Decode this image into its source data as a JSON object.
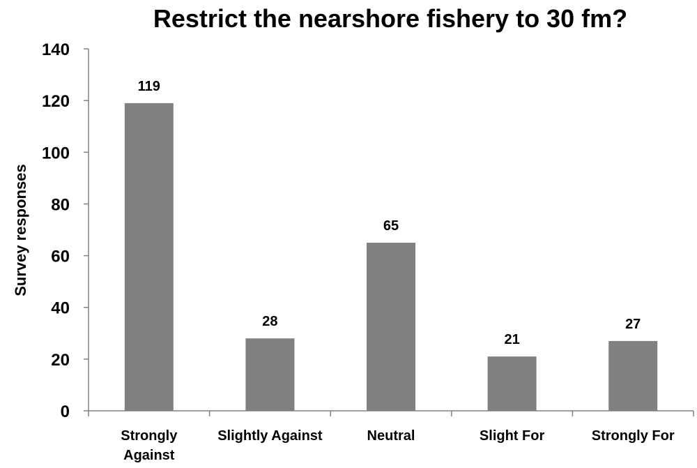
{
  "chart_data": {
    "type": "bar",
    "title": "Restrict the nearshore fishery to 30 fm?",
    "xlabel": "",
    "ylabel": "Survey responses",
    "categories": [
      [
        "Strongly",
        "Against"
      ],
      [
        "Slightly Against"
      ],
      [
        "Neutral"
      ],
      [
        "Slight For"
      ],
      [
        "Strongly For"
      ]
    ],
    "values": [
      119,
      28,
      65,
      21,
      27
    ],
    "data_labels": [
      "119",
      "28",
      "65",
      "21",
      "27"
    ],
    "ylim": [
      0,
      140
    ],
    "yticks": [
      "0",
      "20",
      "40",
      "60",
      "80",
      "100",
      "120",
      "140"
    ],
    "grid": false,
    "legend": "none",
    "bar_color": "#808080",
    "axis_color": "#808080"
  }
}
